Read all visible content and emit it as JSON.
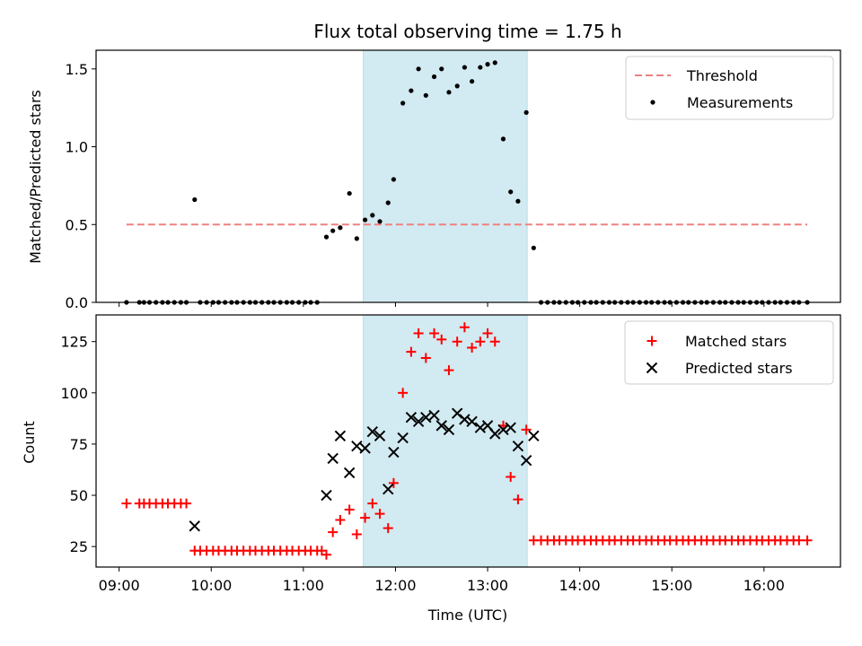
{
  "chart_data": {
    "type": "scatter",
    "title": "Flux total observing time = 1.75 h",
    "xlabel": "Time (UTC)",
    "x_unit": "hours (UTC)",
    "xlim": [
      8.75,
      16.83
    ],
    "x_ticks": [
      {
        "value": 9,
        "label": "09:00"
      },
      {
        "value": 10,
        "label": "10:00"
      },
      {
        "value": 11,
        "label": "11:00"
      },
      {
        "value": 12,
        "label": "12:00"
      },
      {
        "value": 13,
        "label": "13:00"
      },
      {
        "value": 14,
        "label": "14:00"
      },
      {
        "value": 15,
        "label": "15:00"
      },
      {
        "value": 16,
        "label": "16:00"
      }
    ],
    "highlight_span": {
      "x_start": 11.65,
      "x_end": 13.43,
      "color": "#add8e6"
    },
    "panels": [
      {
        "name": "ratio",
        "ylabel": "Matched/Predicted stars",
        "ylim": [
          0,
          1.62
        ],
        "y_ticks": [
          {
            "value": 0,
            "label": "0.0"
          },
          {
            "value": 0.5,
            "label": "0.5"
          },
          {
            "value": 1.0,
            "label": "1.0"
          },
          {
            "value": 1.5,
            "label": "1.5"
          }
        ],
        "legend_position": "upper right",
        "threshold": {
          "name": "Threshold",
          "value": 0.5,
          "x_start": 9.08,
          "x_end": 16.47,
          "color": "#f08080"
        },
        "measurements": {
          "name": "Measurements",
          "color": "#000000",
          "x": [
            9.08,
            9.22,
            9.27,
            9.33,
            9.4,
            9.47,
            9.53,
            9.6,
            9.67,
            9.73,
            9.82,
            9.88,
            9.95,
            10.02,
            10.08,
            10.15,
            10.22,
            10.28,
            10.35,
            10.42,
            10.48,
            10.55,
            10.62,
            10.68,
            10.75,
            10.82,
            10.88,
            10.95,
            11.02,
            11.08,
            11.15,
            11.25,
            11.32,
            11.4,
            11.5,
            11.58,
            11.67,
            11.75,
            11.83,
            11.92,
            11.98,
            12.08,
            12.17,
            12.25,
            12.33,
            12.42,
            12.5,
            12.58,
            12.67,
            12.75,
            12.83,
            12.92,
            13.0,
            13.08,
            13.17,
            13.25,
            13.33,
            13.42,
            13.5,
            13.58,
            13.65,
            13.72,
            13.78,
            13.85,
            13.92,
            13.98,
            14.05,
            14.12,
            14.18,
            14.25,
            14.32,
            14.38,
            14.45,
            14.52,
            14.58,
            14.65,
            14.72,
            14.78,
            14.85,
            14.92,
            14.98,
            15.05,
            15.12,
            15.18,
            15.25,
            15.32,
            15.38,
            15.45,
            15.52,
            15.58,
            15.65,
            15.72,
            15.78,
            15.85,
            15.92,
            15.98,
            16.05,
            16.12,
            16.18,
            16.25,
            16.32,
            16.38,
            16.47
          ],
          "y": [
            0,
            0,
            0,
            0,
            0,
            0,
            0,
            0,
            0,
            0,
            0.66,
            0,
            0,
            0,
            0,
            0,
            0,
            0,
            0,
            0,
            0,
            0,
            0,
            0,
            0,
            0,
            0,
            0,
            0,
            0,
            0,
            0.42,
            0.46,
            0.48,
            0.7,
            0.41,
            0.53,
            0.56,
            0.52,
            0.64,
            0.79,
            1.28,
            1.36,
            1.5,
            1.33,
            1.45,
            1.5,
            1.35,
            1.39,
            1.51,
            1.42,
            1.51,
            1.53,
            1.54,
            1.05,
            0.71,
            0.65,
            1.22,
            0.35,
            0,
            0,
            0,
            0,
            0,
            0,
            0,
            0,
            0,
            0,
            0,
            0,
            0,
            0,
            0,
            0,
            0,
            0,
            0,
            0,
            0,
            0,
            0,
            0,
            0,
            0,
            0,
            0,
            0,
            0,
            0,
            0,
            0,
            0,
            0,
            0,
            0,
            0,
            0,
            0,
            0,
            0,
            0,
            0
          ]
        }
      },
      {
        "name": "counts",
        "ylabel": "Count",
        "ylim": [
          15,
          138
        ],
        "y_ticks": [
          {
            "value": 25,
            "label": "25"
          },
          {
            "value": 50,
            "label": "50"
          },
          {
            "value": 75,
            "label": "75"
          },
          {
            "value": 100,
            "label": "100"
          },
          {
            "value": 125,
            "label": "125"
          }
        ],
        "legend_position": "upper right",
        "series": [
          {
            "name": "Matched stars",
            "marker": "plus",
            "color": "#ff0000",
            "x": [
              9.08,
              9.22,
              9.27,
              9.33,
              9.4,
              9.47,
              9.53,
              9.6,
              9.67,
              9.73,
              9.82,
              9.88,
              9.95,
              10.02,
              10.08,
              10.15,
              10.22,
              10.28,
              10.35,
              10.42,
              10.48,
              10.55,
              10.62,
              10.68,
              10.75,
              10.82,
              10.88,
              10.95,
              11.02,
              11.08,
              11.15,
              11.2,
              11.25,
              11.32,
              11.4,
              11.5,
              11.58,
              11.67,
              11.75,
              11.83,
              11.92,
              11.98,
              12.08,
              12.17,
              12.25,
              12.33,
              12.42,
              12.5,
              12.58,
              12.67,
              12.75,
              12.83,
              12.92,
              13.0,
              13.08,
              13.17,
              13.25,
              13.33,
              13.42,
              13.5,
              13.58,
              13.65,
              13.72,
              13.78,
              13.85,
              13.92,
              13.98,
              14.05,
              14.12,
              14.18,
              14.25,
              14.32,
              14.38,
              14.45,
              14.52,
              14.58,
              14.65,
              14.72,
              14.78,
              14.85,
              14.92,
              14.98,
              15.05,
              15.12,
              15.18,
              15.25,
              15.32,
              15.38,
              15.45,
              15.52,
              15.58,
              15.65,
              15.72,
              15.78,
              15.85,
              15.92,
              15.98,
              16.05,
              16.12,
              16.18,
              16.25,
              16.32,
              16.38,
              16.47
            ],
            "y": [
              46,
              46,
              46,
              46,
              46,
              46,
              46,
              46,
              46,
              46,
              23,
              23,
              23,
              23,
              23,
              23,
              23,
              23,
              23,
              23,
              23,
              23,
              23,
              23,
              23,
              23,
              23,
              23,
              23,
              23,
              23,
              23,
              21,
              32,
              38,
              43,
              31,
              39,
              46,
              41,
              34,
              56,
              100,
              120,
              129,
              117,
              129,
              126,
              111,
              125,
              132,
              122,
              125,
              129,
              125,
              84,
              59,
              48,
              82,
              28,
              28,
              28,
              28,
              28,
              28,
              28,
              28,
              28,
              28,
              28,
              28,
              28,
              28,
              28,
              28,
              28,
              28,
              28,
              28,
              28,
              28,
              28,
              28,
              28,
              28,
              28,
              28,
              28,
              28,
              28,
              28,
              28,
              28,
              28,
              28,
              28,
              28,
              28,
              28,
              28,
              28,
              28,
              28,
              28
            ]
          },
          {
            "name": "Predicted stars",
            "marker": "x",
            "color": "#000000",
            "x": [
              9.82,
              11.25,
              11.32,
              11.4,
              11.5,
              11.58,
              11.67,
              11.75,
              11.83,
              11.92,
              11.98,
              12.08,
              12.17,
              12.25,
              12.33,
              12.42,
              12.5,
              12.58,
              12.67,
              12.75,
              12.83,
              12.92,
              13.0,
              13.08,
              13.17,
              13.25,
              13.33,
              13.42,
              13.5
            ],
            "y": [
              35,
              50,
              68,
              79,
              61,
              74,
              73,
              81,
              79,
              53,
              71,
              78,
              88,
              86,
              88,
              89,
              84,
              82,
              90,
              87,
              86,
              83,
              84,
              80,
              82,
              83,
              74,
              67,
              79
            ]
          }
        ]
      }
    ]
  }
}
